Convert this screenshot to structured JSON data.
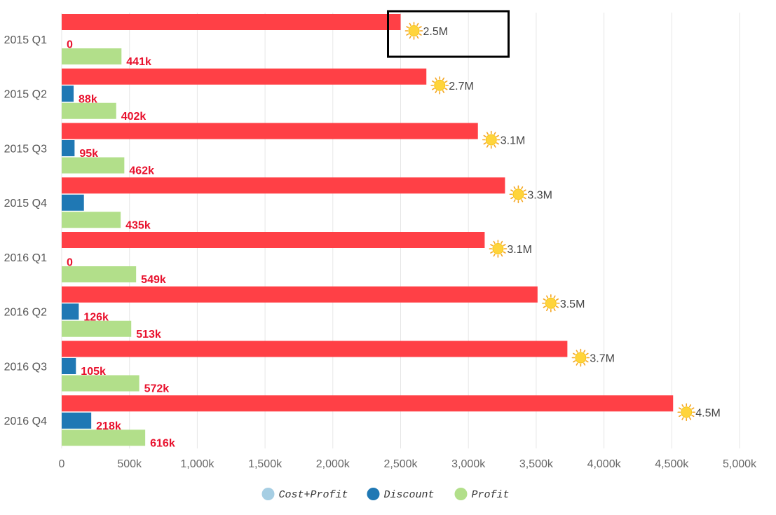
{
  "chart_data": {
    "type": "bar",
    "orientation": "horizontal",
    "categories": [
      "2015 Q1",
      "2015 Q2",
      "2015 Q3",
      "2015 Q4",
      "2016 Q1",
      "2016 Q2",
      "2016 Q3",
      "2016 Q4"
    ],
    "series": [
      {
        "name": "Cost+Profit",
        "color": "#ff4046",
        "legend_color": "#a6cee3",
        "values": [
          2500,
          2690,
          3070,
          3270,
          3120,
          3510,
          3730,
          4510
        ],
        "labels": [
          "2.5M",
          "2.7M",
          "3.1M",
          "3.3M",
          "3.1M",
          "3.5M",
          "3.7M",
          "4.5M"
        ],
        "label_icon": "sun-icon"
      },
      {
        "name": "Discount",
        "color": "#1f78b4",
        "values": [
          0,
          88,
          95,
          164,
          0,
          126,
          105,
          218
        ],
        "labels": [
          "0",
          "88k",
          "95k",
          "",
          "0",
          "126k",
          "105k",
          "218k"
        ]
      },
      {
        "name": "Profit",
        "color": "#b2df8a",
        "values": [
          441,
          402,
          462,
          435,
          549,
          513,
          572,
          616
        ],
        "labels": [
          "441k",
          "402k",
          "462k",
          "435k",
          "549k",
          "513k",
          "572k",
          "616k"
        ]
      }
    ],
    "x_ticks": [
      "0",
      "500k",
      "1,000k",
      "1,500k",
      "2,000k",
      "2,500k",
      "3,000k",
      "3,500k",
      "4,000k",
      "4,500k",
      "5,000k"
    ],
    "xlim": [
      0,
      5000
    ],
    "xlabel": "",
    "ylabel": "",
    "grid": true,
    "legend_position": "bottom-center",
    "highlight": {
      "category": "2015 Q1",
      "series": "Cost+Profit"
    }
  }
}
